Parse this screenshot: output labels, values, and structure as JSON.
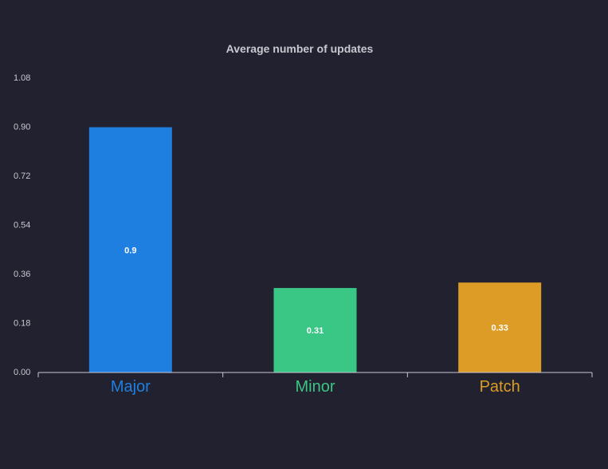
{
  "chart_data": {
    "type": "bar",
    "title": "Average number of updates",
    "categories": [
      "Major",
      "Minor",
      "Patch"
    ],
    "values": [
      0.9,
      0.31,
      0.33
    ],
    "data_labels": [
      "0.9",
      "0.31",
      "0.33"
    ],
    "colors": [
      "#1f7fe0",
      "#3ac685",
      "#dc9c25"
    ],
    "yticks": [
      "0.00",
      "0.18",
      "0.36",
      "0.54",
      "0.72",
      "0.90",
      "1.08"
    ],
    "ylim": [
      0,
      1.08
    ],
    "grid": false,
    "xlabel": "",
    "ylabel": ""
  },
  "theme": {
    "background": "#22212f",
    "axis_color": "#c8c8d0",
    "text_color": "#c8c8d0"
  }
}
